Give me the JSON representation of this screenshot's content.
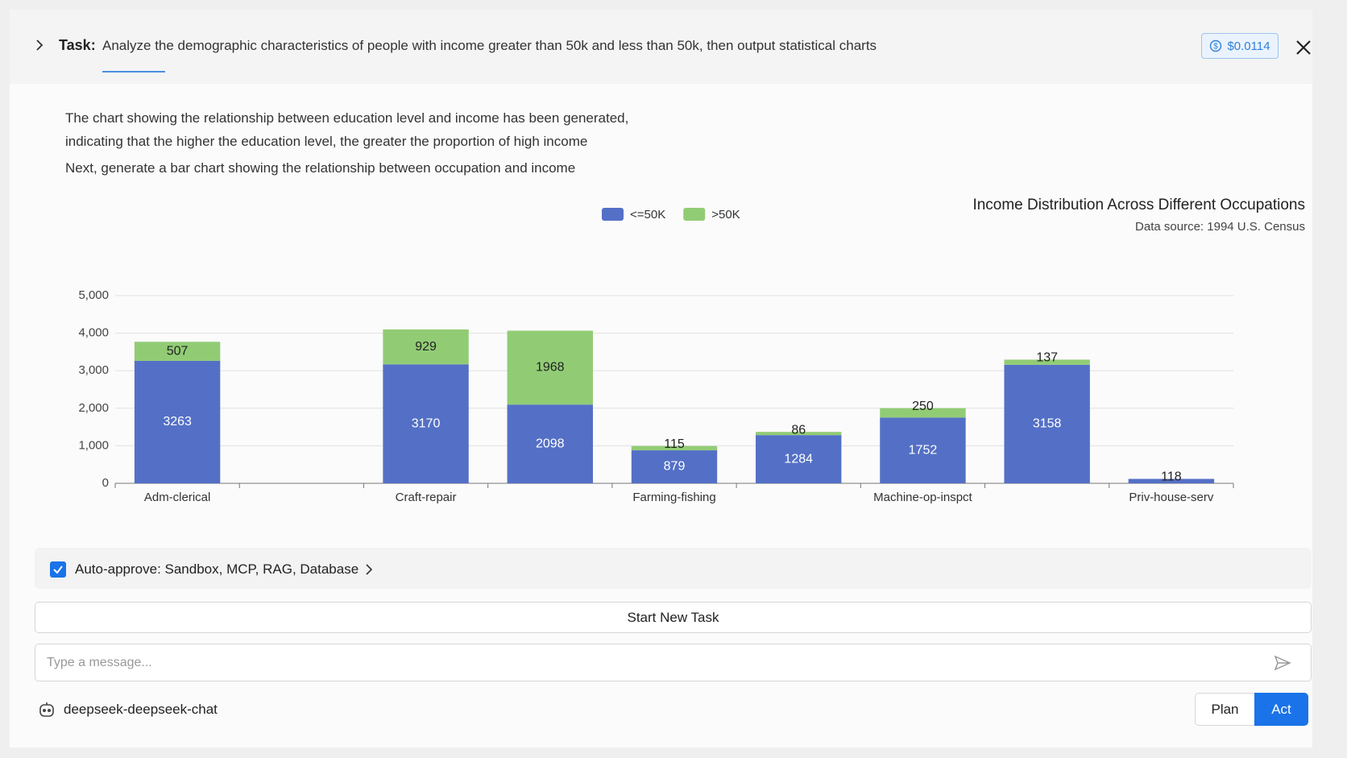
{
  "header": {
    "task_label": "Task:",
    "task_text": "Analyze the demographic characteristics of people with income greater than 50k and less than 50k, then output statistical charts",
    "cost": "$0.0114"
  },
  "messages": [
    "The chart showing the relationship between education level and income has been generated,",
    "indicating that the higher the education level, the greater the proportion of high income",
    "Next, generate a bar chart showing the relationship between occupation and income"
  ],
  "chart_data": {
    "type": "stacked_bar",
    "title": "Income Distribution Across Different Occupations",
    "subtitle": "Data source: 1994 U.S. Census",
    "categories": [
      "Adm-clerical",
      null,
      "Craft-repair",
      null,
      "Farming-fishing",
      null,
      "Machine-op-inspct",
      null,
      "Priv-house-serv"
    ],
    "series": [
      {
        "name": "<=50K",
        "color": "#5470c6",
        "values": [
          3263,
          null,
          3170,
          2098,
          879,
          1284,
          1752,
          3158,
          118
        ]
      },
      {
        "name": ">50K",
        "color": "#91cc75",
        "values": [
          507,
          null,
          929,
          1968,
          115,
          86,
          250,
          137,
          null
        ]
      }
    ],
    "ylim": [
      0,
      5000
    ],
    "yticks": [
      0,
      {
        "value": 1000,
        "label": "1,000"
      },
      {
        "value": 2000,
        "label": "2,000"
      },
      {
        "value": 3000,
        "label": "3,000"
      },
      {
        "value": 4000,
        "label": "4,000"
      },
      {
        "value": 5000,
        "label": "5,000"
      }
    ],
    "grid": true,
    "legend": "top"
  },
  "controls": {
    "auto_approve": "Auto-approve: Sandbox, MCP, RAG, Database",
    "new_task": "Start New Task",
    "placeholder": "Type a message...",
    "model": "deepseek-deepseek-chat",
    "plan": "Plan",
    "act": "Act"
  }
}
